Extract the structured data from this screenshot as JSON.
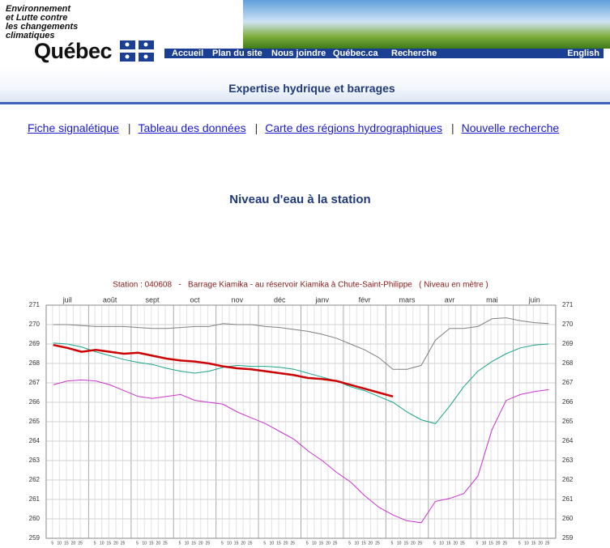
{
  "header": {
    "logo_lines": [
      "Environnement",
      "et Lutte contre",
      "les changements",
      "climatiques"
    ],
    "brand": "Québec",
    "nav": [
      "Accueil",
      "Plan du site",
      "Nous joindre",
      "Québec.ca",
      "Recherche"
    ],
    "language": "English",
    "section": "Expertise hydrique et barrages"
  },
  "links": [
    "Fiche signalétique",
    "Tableau des données",
    "Carte des régions hydrographiques",
    "Nouvelle recherche"
  ],
  "separator": "|",
  "heading": "Niveau d'eau à la station",
  "chart_data": {
    "type": "line",
    "title": "Station : 040608   -   Barrage Kiamika - au réservoir Kiamika à Chute-Saint-Philippe   ( Niveau en mètre )",
    "categories": [
      null,
      "juil",
      null,
      null,
      "août",
      null,
      null,
      "sept",
      null,
      null,
      "oct",
      null,
      null,
      "nov",
      null,
      null,
      "déc",
      null,
      null,
      "janv",
      null,
      null,
      "févr",
      null,
      null,
      "mars",
      null,
      null,
      "avr",
      null,
      null,
      "mai",
      null,
      null,
      "juin",
      null
    ],
    "day_ticks": [
      5,
      10,
      15,
      20,
      25
    ],
    "series": [
      {
        "color": "#808080",
        "values": [
          270.0,
          270.0,
          269.95,
          269.9,
          269.9,
          269.9,
          269.85,
          269.8,
          269.8,
          269.85,
          269.9,
          269.9,
          270.05,
          270.0,
          270.0,
          269.9,
          269.85,
          269.75,
          269.65,
          269.5,
          269.3,
          269.0,
          268.7,
          268.3,
          267.7,
          267.7,
          267.9,
          269.2,
          269.8,
          269.8,
          269.9,
          270.3,
          270.35,
          270.2,
          270.1,
          270.05
        ]
      },
      {
        "color": "#1aa38a",
        "values": [
          269.05,
          269.0,
          268.85,
          268.6,
          268.4,
          268.2,
          268.05,
          267.95,
          267.75,
          267.6,
          267.5,
          267.6,
          267.8,
          267.9,
          267.85,
          267.85,
          267.8,
          267.7,
          267.5,
          267.3,
          267.1,
          266.8,
          266.6,
          266.3,
          266.0,
          265.5,
          265.1,
          264.9,
          265.8,
          266.8,
          267.6,
          268.1,
          268.5,
          268.8,
          268.95,
          269.0
        ]
      },
      {
        "color": "#cc33cc",
        "values": [
          266.9,
          267.1,
          267.15,
          267.1,
          266.9,
          266.6,
          266.3,
          266.2,
          266.3,
          266.4,
          266.1,
          266.0,
          265.9,
          265.5,
          265.2,
          264.9,
          264.5,
          264.1,
          263.5,
          263.0,
          262.4,
          261.9,
          261.2,
          260.6,
          260.2,
          259.9,
          259.8,
          260.9,
          261.05,
          261.3,
          262.2,
          264.6,
          266.1,
          266.4,
          266.55,
          266.65
        ]
      },
      {
        "color": "#cc0000",
        "values": [
          268.95,
          268.8,
          268.6,
          268.7,
          268.6,
          268.5,
          268.55,
          268.4,
          268.25,
          268.15,
          268.1,
          268.0,
          267.85,
          267.75,
          267.7,
          267.6,
          267.5,
          267.4,
          267.25,
          267.2,
          267.1,
          266.9,
          266.7,
          266.5,
          266.3,
          null,
          null,
          null,
          null,
          null,
          null,
          null,
          null,
          null,
          null,
          null
        ]
      }
    ],
    "ylim": [
      259,
      271
    ],
    "yticks": [
      259,
      260,
      261,
      262,
      263,
      264,
      265,
      266,
      267,
      268,
      269,
      270,
      271
    ],
    "grid": true
  }
}
